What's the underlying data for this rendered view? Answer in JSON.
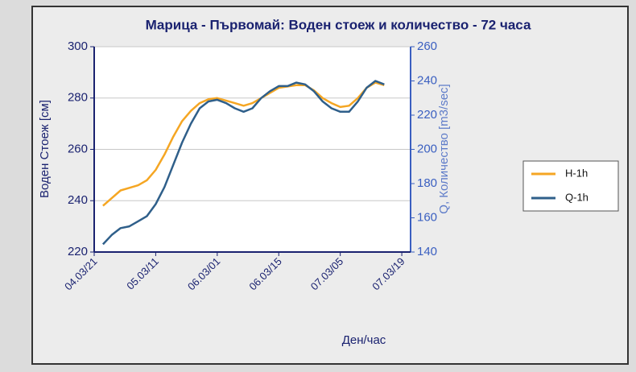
{
  "chart_data": {
    "type": "line",
    "title": "Марица - Първомай: Воден стоеж и количество - 72 часа",
    "y_label": "Воден Стоеж [см]",
    "y2_label": "Q, Количество [m3/sec]",
    "x_label": "Ден/час",
    "x": [
      2,
      4,
      6,
      8,
      10,
      12,
      14,
      16,
      18,
      20,
      22,
      24,
      26,
      28,
      30,
      32,
      34,
      36,
      38,
      40,
      42,
      44,
      46,
      48,
      50,
      52,
      54,
      56,
      58,
      60,
      62,
      64,
      66
    ],
    "xlim": [
      0,
      72
    ],
    "xticks": [
      {
        "value": 0,
        "label": "04.03/21"
      },
      {
        "value": 14,
        "label": "05.03/11"
      },
      {
        "value": 28,
        "label": "06.03/01"
      },
      {
        "value": 42,
        "label": "06.03/15"
      },
      {
        "value": 56,
        "label": "07.03/05"
      },
      {
        "value": 70,
        "label": "07.03/19"
      }
    ],
    "ylim": [
      220,
      300
    ],
    "yticks": [
      220,
      240,
      260,
      280,
      300
    ],
    "y2lim": [
      140,
      260
    ],
    "y2ticks": [
      140,
      160,
      180,
      200,
      220,
      240,
      260
    ],
    "grid": true,
    "legend": "right",
    "series": [
      {
        "name": "H-1h",
        "color": "#f5a623",
        "values": [
          238,
          241,
          244,
          245,
          246,
          248,
          252,
          258,
          265,
          271,
          275,
          278,
          279.5,
          280,
          279,
          278,
          277,
          278,
          280,
          282,
          284,
          284.5,
          285,
          285,
          283,
          280,
          278,
          276.5,
          277,
          280,
          284,
          286,
          285
        ]
      },
      {
        "name": "Q-1h",
        "color": "#2f5f8a",
        "axis": "y2",
        "values": [
          144.5,
          150,
          154,
          155,
          158,
          161,
          168,
          178,
          191,
          204,
          215,
          224,
          228,
          229,
          227,
          224,
          222,
          224,
          230,
          234,
          237,
          237,
          239,
          238,
          234,
          228,
          224,
          222,
          222,
          228,
          236,
          240,
          238
        ]
      }
    ]
  }
}
